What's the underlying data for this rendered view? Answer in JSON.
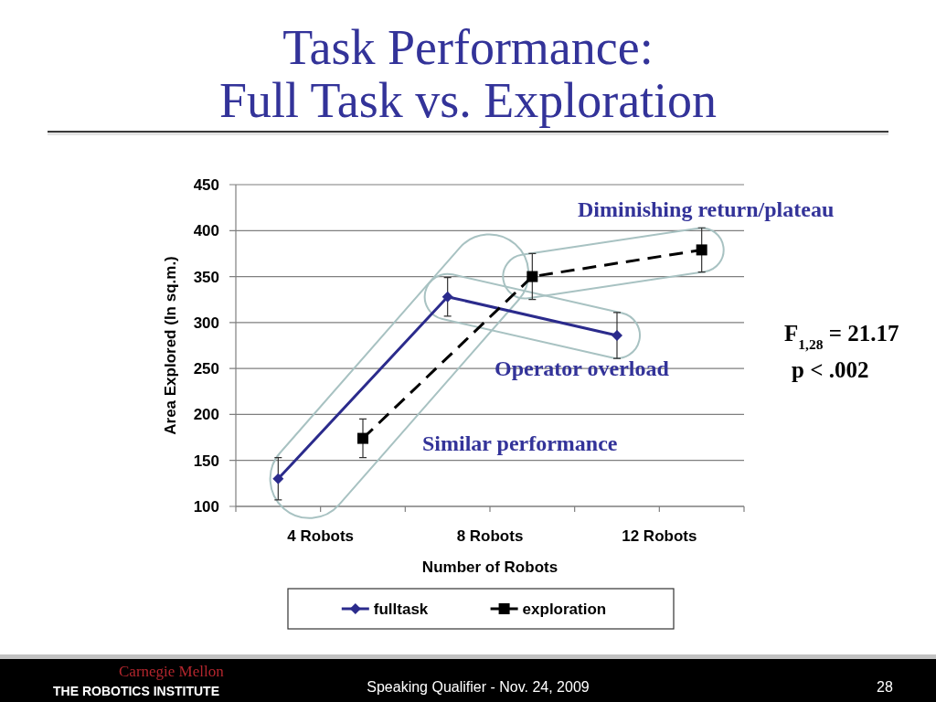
{
  "chart_data": {
    "type": "line",
    "title": "Task Performance:\nFull Task vs. Exploration",
    "xlabel": "Number of Robots",
    "ylabel": "Area Explored (In sq.m.)",
    "categories": [
      "4 Robots",
      "8 Robots",
      "12 Robots"
    ],
    "series": [
      {
        "name": "fulltask",
        "color": "#2b2b8c",
        "values": [
          130,
          328,
          286
        ],
        "errors": [
          23,
          21,
          25
        ],
        "marker": "diamond",
        "line_style": "solid"
      },
      {
        "name": "exploration",
        "color": "#000000",
        "values": [
          174,
          350,
          379
        ],
        "errors": [
          21,
          25,
          24
        ],
        "marker": "square",
        "line_style": "dashed"
      }
    ],
    "ylim": [
      100,
      450
    ],
    "yticks": [
      100,
      150,
      200,
      250,
      300,
      350,
      400,
      450
    ],
    "grid": "y",
    "legend": "bottom",
    "annotations": [
      "Diminishing return/plateau",
      "Operator overload",
      "Similar performance",
      "F$_{1,28}$ = 21.17",
      "p < .002",
      "Carnegie Mellon",
      "THE ROBOTICS INSTITUTE",
      "Speaking Qualifier - Nov. 24, 2009",
      "28"
    ]
  }
}
